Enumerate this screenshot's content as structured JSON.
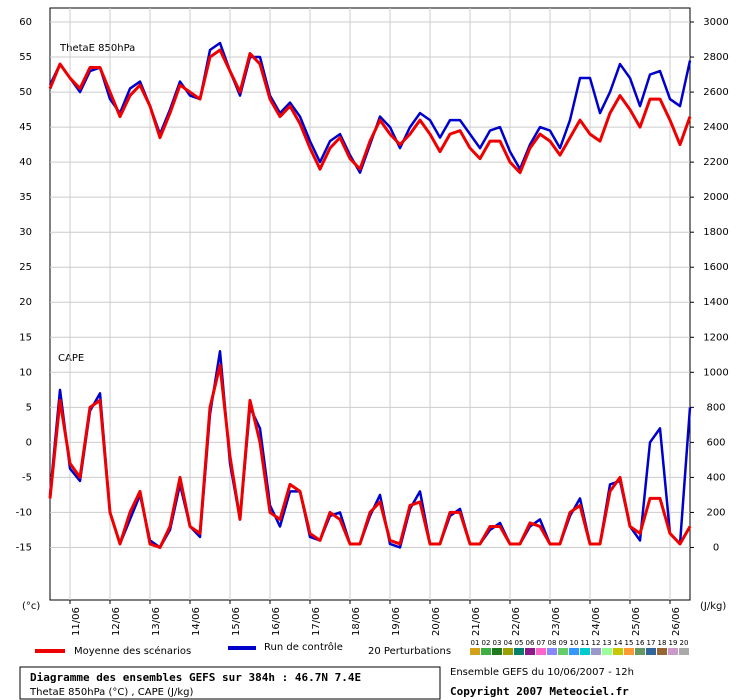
{
  "chart_data": {
    "type": "line",
    "left_unit": "(°c)",
    "right_unit": "(J/kg)",
    "thetae_label": "ThetaE 850hPa",
    "cape_label": "CAPE",
    "xlim": [
      0,
      384
    ],
    "xticks": [
      {
        "value": 12,
        "label": "11/06"
      },
      {
        "value": 36,
        "label": "12/06"
      },
      {
        "value": 60,
        "label": "13/06"
      },
      {
        "value": 84,
        "label": "14/06"
      },
      {
        "value": 108,
        "label": "15/06"
      },
      {
        "value": 132,
        "label": "16/06"
      },
      {
        "value": 156,
        "label": "17/06"
      },
      {
        "value": 180,
        "label": "18/06"
      },
      {
        "value": 204,
        "label": "19/06"
      },
      {
        "value": 228,
        "label": "20/06"
      },
      {
        "value": 252,
        "label": "21/06"
      },
      {
        "value": 276,
        "label": "22/06"
      },
      {
        "value": 300,
        "label": "23/06"
      },
      {
        "value": 324,
        "label": "24/06"
      },
      {
        "value": 348,
        "label": "25/06"
      },
      {
        "value": 372,
        "label": "26/06"
      }
    ],
    "ylim": [
      -22.5,
      62
    ],
    "yticks": [
      -15,
      -10,
      -5,
      0,
      5,
      10,
      15,
      20,
      25,
      30,
      35,
      40,
      45,
      50,
      55,
      60
    ],
    "y2lim": [
      -300,
      3080
    ],
    "y2ticks": [
      0,
      200,
      400,
      600,
      800,
      1000,
      1200,
      1400,
      1600,
      1800,
      2000,
      2200,
      2400,
      2600,
      2800,
      3000
    ],
    "grid": true,
    "x": [
      0,
      6,
      12,
      18,
      24,
      30,
      36,
      42,
      48,
      54,
      60,
      66,
      72,
      78,
      84,
      90,
      96,
      102,
      108,
      114,
      120,
      126,
      132,
      138,
      144,
      150,
      156,
      162,
      168,
      174,
      180,
      186,
      192,
      198,
      204,
      210,
      216,
      222,
      228,
      234,
      240,
      246,
      252,
      258,
      264,
      270,
      276,
      282,
      288,
      294,
      300,
      306,
      312,
      318,
      324,
      330,
      336,
      342,
      348,
      354,
      360,
      366,
      372,
      378,
      384
    ],
    "series": [
      {
        "name": "Moyenne des scénarios",
        "color": "#ee0000",
        "thetae": [
          50.5,
          54,
          52,
          50.5,
          53.5,
          53.5,
          50,
          46.5,
          49.5,
          51,
          48,
          43.5,
          47,
          51,
          50,
          49,
          55,
          56,
          53,
          50,
          55.5,
          54,
          49,
          46.5,
          48,
          45.5,
          42,
          39,
          42,
          43.5,
          40.5,
          39,
          43,
          46,
          44,
          42.5,
          44,
          46,
          44,
          41.5,
          44,
          44.5,
          42,
          40.5,
          43,
          43,
          40,
          38.5,
          42,
          44,
          43,
          41,
          43.5,
          46,
          44,
          43,
          47,
          49.5,
          47.5,
          45,
          49,
          49,
          46,
          42.5,
          46.5
        ],
        "cape": [
          280,
          840,
          480,
          400,
          800,
          840,
          200,
          20,
          200,
          320,
          20,
          0,
          120,
          400,
          120,
          80,
          800,
          1040,
          520,
          160,
          840,
          600,
          200,
          160,
          360,
          320,
          80,
          40,
          200,
          160,
          20,
          20,
          200,
          260,
          40,
          20,
          240,
          260,
          20,
          20,
          200,
          200,
          20,
          20,
          120,
          120,
          20,
          20,
          140,
          120,
          20,
          20,
          200,
          240,
          20,
          20,
          320,
          400,
          120,
          80,
          280,
          280,
          80,
          20,
          120
        ]
      },
      {
        "name": "Run de contrôle",
        "color": "#0000cc",
        "thetae": [
          51,
          54,
          52,
          50,
          53,
          53.5,
          49,
          47,
          50.5,
          51.5,
          48,
          44,
          47.5,
          51.5,
          49.5,
          49,
          56,
          57,
          53,
          49.5,
          55,
          55,
          49.5,
          47,
          48.5,
          46.5,
          43,
          40,
          43,
          44,
          41,
          38.5,
          42.5,
          46.5,
          45,
          42,
          45,
          47,
          46,
          43.5,
          46,
          46,
          44,
          42,
          44.5,
          45,
          41.5,
          39,
          42.5,
          45,
          44.5,
          42,
          46,
          52,
          52,
          47,
          50,
          54,
          52,
          48,
          52.5,
          53,
          49,
          48,
          54.5
        ],
        "cape": [
          300,
          900,
          450,
          380,
          780,
          880,
          200,
          20,
          160,
          300,
          40,
          0,
          100,
          360,
          120,
          60,
          760,
          1120,
          480,
          160,
          800,
          680,
          240,
          120,
          320,
          320,
          60,
          40,
          180,
          200,
          20,
          20,
          180,
          300,
          20,
          0,
          220,
          320,
          20,
          20,
          180,
          220,
          20,
          20,
          100,
          140,
          20,
          20,
          120,
          160,
          20,
          20,
          180,
          280,
          20,
          20,
          360,
          380,
          120,
          40,
          600,
          680,
          80,
          20,
          800
        ]
      }
    ],
    "perturbations": {
      "label": "20 Perturbations",
      "members": [
        "01",
        "02",
        "03",
        "04",
        "05",
        "06",
        "07",
        "08",
        "09",
        "10",
        "11",
        "12",
        "13",
        "14",
        "15",
        "16",
        "17",
        "18",
        "19",
        "20"
      ],
      "colors": [
        "#d4a017",
        "#3cb043",
        "#1f7a1f",
        "#9aa000",
        "#00806e",
        "#8b1a8b",
        "#ff66cc",
        "#8888ff",
        "#66cc66",
        "#3399ff",
        "#00cccc",
        "#9999cc",
        "#99ff99",
        "#c8c800",
        "#ff9933",
        "#669966",
        "#336699",
        "#996633",
        "#cc99cc",
        "#aaaaaa"
      ]
    },
    "footer": {
      "title": "Diagramme des ensembles GEFS sur 384h : 46.7N 7.4E",
      "subtitle": "ThetaE 850hPa (°C) , CAPE (J/kg)",
      "run": "Ensemble GEFS du 10/06/2007 - 12h",
      "copyright": "Copyright 2007 Meteociel.fr"
    }
  }
}
